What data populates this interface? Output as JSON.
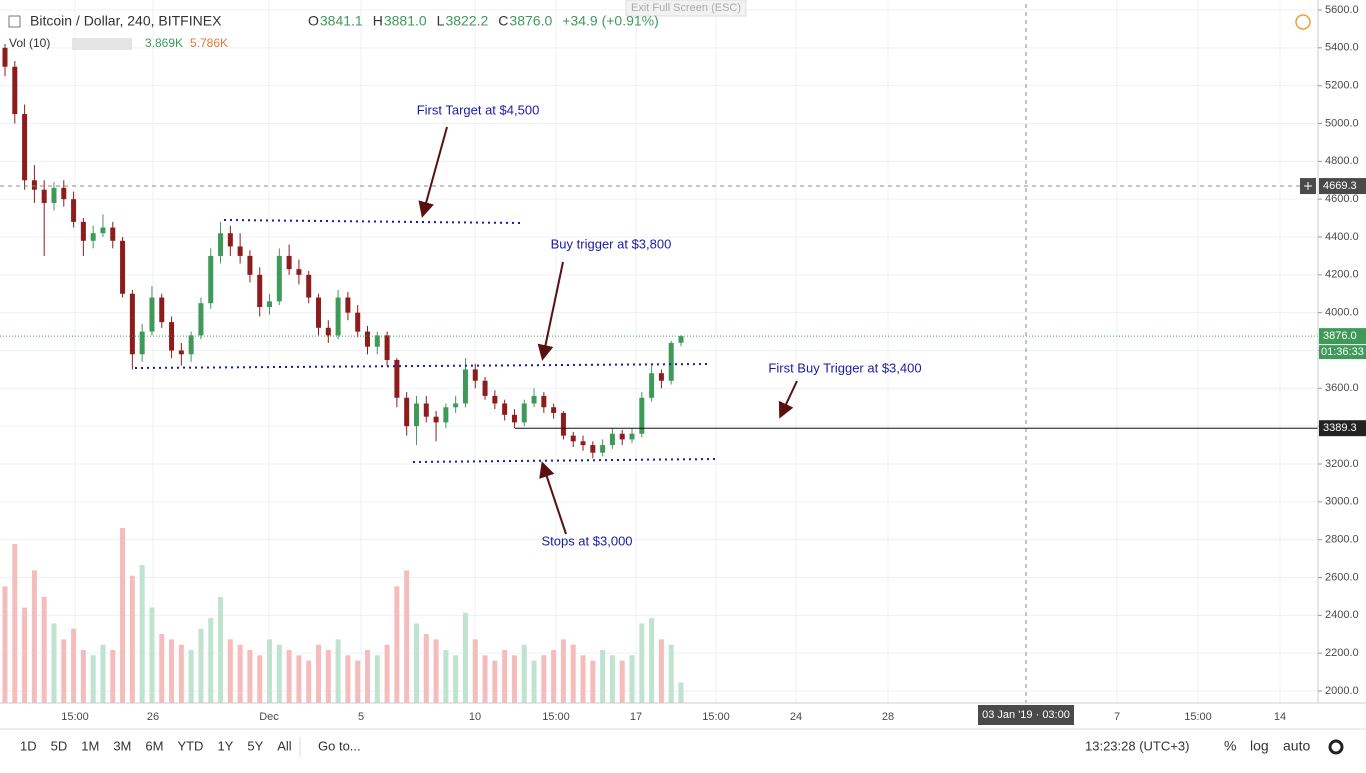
{
  "chart_data": {
    "type": "candlestick",
    "title": "Bitcoin / Dollar, 240, BITFINEX",
    "legend": [
      "O",
      "3841.1",
      "H",
      "3881.0",
      "L",
      "3822.2",
      "C",
      "3876.0",
      "+34.9 (+0.91%)"
    ],
    "volume_title": "Vol (10)",
    "volume_label": "3.869K",
    "volume_ma_label": "5.786K",
    "exit_label": "Exit Full Screen (ESC)",
    "up_color": "#3f9a5a",
    "down_color": "#8e1c1c",
    "up_volume_color": "#bfe3cf",
    "down_volume_color": "#f5bcbc",
    "ylim": [
      2000,
      5600
    ],
    "yticks": [
      {
        "value": 2000,
        "label": "2000.0"
      },
      {
        "value": 2200,
        "label": "2200.0"
      },
      {
        "value": 2400,
        "label": "2400.0"
      },
      {
        "value": 2600,
        "label": "2600.0"
      },
      {
        "value": 2800,
        "label": "2800.0"
      },
      {
        "value": 3000,
        "label": "3000.0"
      },
      {
        "value": 3200,
        "label": "3200.0"
      },
      {
        "value": 3400,
        "label": "3400.0"
      },
      {
        "value": 3600,
        "label": "3600.0"
      },
      {
        "value": 3800,
        "label": "3800.0"
      },
      {
        "value": 4000,
        "label": "4000.0"
      },
      {
        "value": 4200,
        "label": "4200.0"
      },
      {
        "value": 4400,
        "label": "4400.0"
      },
      {
        "value": 4600,
        "label": "4600.0"
      },
      {
        "value": 4800,
        "label": "4800.0"
      },
      {
        "value": 5000,
        "label": "5000.0"
      },
      {
        "value": 5200,
        "label": "5200.0"
      },
      {
        "value": 5400,
        "label": "5400.0"
      },
      {
        "value": 5600,
        "label": "5600.0"
      }
    ],
    "xticks": [
      "15:00",
      "26",
      "Dec",
      "5",
      "10",
      "15:00",
      "17",
      "15:00",
      "24",
      "28",
      "7",
      "15:00",
      "14"
    ],
    "crosshair_time": "03 Jan '19 · 03:00",
    "last_price": {
      "value": 3876.0,
      "label": "3876.0"
    },
    "countdown": "01:36:33",
    "crosshair_price": {
      "value": 4669.3,
      "label": "4669.3"
    },
    "hline": {
      "value": 3389.3,
      "label": "3389.3"
    },
    "ohlc": [
      [
        5400,
        5420,
        5250,
        5300
      ],
      [
        5300,
        5330,
        5000,
        5050
      ],
      [
        5050,
        5100,
        4650,
        4700
      ],
      [
        4700,
        4780,
        4580,
        4650
      ],
      [
        4650,
        4700,
        4300,
        4580
      ],
      [
        4580,
        4690,
        4540,
        4660
      ],
      [
        4660,
        4700,
        4560,
        4600
      ],
      [
        4600,
        4640,
        4450,
        4480
      ],
      [
        4480,
        4500,
        4300,
        4380
      ],
      [
        4380,
        4460,
        4340,
        4420
      ],
      [
        4420,
        4520,
        4400,
        4450
      ],
      [
        4450,
        4480,
        4340,
        4380
      ],
      [
        4380,
        4400,
        4080,
        4100
      ],
      [
        4100,
        4120,
        3700,
        3780
      ],
      [
        3780,
        3940,
        3740,
        3900
      ],
      [
        3900,
        4140,
        3880,
        4080
      ],
      [
        4080,
        4100,
        3920,
        3950
      ],
      [
        3950,
        3980,
        3760,
        3800
      ],
      [
        3800,
        3840,
        3720,
        3780
      ],
      [
        3780,
        3900,
        3740,
        3880
      ],
      [
        3880,
        4080,
        3860,
        4050
      ],
      [
        4050,
        4340,
        4020,
        4300
      ],
      [
        4300,
        4480,
        4260,
        4420
      ],
      [
        4420,
        4460,
        4300,
        4350
      ],
      [
        4350,
        4420,
        4260,
        4300
      ],
      [
        4300,
        4330,
        4160,
        4200
      ],
      [
        4200,
        4240,
        3980,
        4030
      ],
      [
        4030,
        4100,
        3990,
        4060
      ],
      [
        4060,
        4340,
        4040,
        4300
      ],
      [
        4300,
        4360,
        4200,
        4230
      ],
      [
        4230,
        4280,
        4150,
        4200
      ],
      [
        4200,
        4220,
        4050,
        4080
      ],
      [
        4080,
        4100,
        3880,
        3920
      ],
      [
        3920,
        3960,
        3840,
        3880
      ],
      [
        3880,
        4120,
        3860,
        4080
      ],
      [
        4080,
        4110,
        3960,
        4000
      ],
      [
        4000,
        4040,
        3870,
        3900
      ],
      [
        3900,
        3930,
        3780,
        3820
      ],
      [
        3820,
        3900,
        3780,
        3880
      ],
      [
        3880,
        3900,
        3720,
        3750
      ],
      [
        3750,
        3760,
        3500,
        3550
      ],
      [
        3550,
        3580,
        3350,
        3400
      ],
      [
        3400,
        3560,
        3300,
        3520
      ],
      [
        3520,
        3560,
        3420,
        3450
      ],
      [
        3450,
        3480,
        3320,
        3420
      ],
      [
        3420,
        3520,
        3390,
        3500
      ],
      [
        3500,
        3560,
        3470,
        3520
      ],
      [
        3520,
        3760,
        3500,
        3700
      ],
      [
        3700,
        3730,
        3600,
        3640
      ],
      [
        3640,
        3660,
        3540,
        3560
      ],
      [
        3560,
        3590,
        3490,
        3520
      ],
      [
        3520,
        3540,
        3430,
        3460
      ],
      [
        3460,
        3490,
        3390,
        3420
      ],
      [
        3420,
        3540,
        3400,
        3520
      ],
      [
        3520,
        3600,
        3500,
        3560
      ],
      [
        3560,
        3580,
        3470,
        3500
      ],
      [
        3500,
        3520,
        3440,
        3470
      ],
      [
        3470,
        3480,
        3330,
        3350
      ],
      [
        3350,
        3370,
        3290,
        3320
      ],
      [
        3320,
        3350,
        3270,
        3300
      ],
      [
        3300,
        3320,
        3230,
        3260
      ],
      [
        3260,
        3330,
        3240,
        3300
      ],
      [
        3300,
        3390,
        3280,
        3360
      ],
      [
        3360,
        3380,
        3300,
        3330
      ],
      [
        3330,
        3390,
        3310,
        3360
      ],
      [
        3360,
        3580,
        3340,
        3550
      ],
      [
        3550,
        3720,
        3530,
        3680
      ],
      [
        3680,
        3700,
        3600,
        3640
      ],
      [
        3640,
        3850,
        3620,
        3840
      ],
      [
        3841.1,
        3881.0,
        3822.2,
        3876.0
      ]
    ],
    "volume": [
      22,
      30,
      18,
      25,
      20,
      15,
      12,
      14,
      10,
      9,
      11,
      10,
      33,
      24,
      26,
      18,
      13,
      12,
      11,
      10,
      14,
      16,
      20,
      12,
      11,
      10,
      9,
      12,
      11,
      10,
      9,
      8,
      11,
      10,
      12,
      9,
      8,
      10,
      9,
      11,
      22,
      25,
      15,
      13,
      12,
      10,
      9,
      17,
      12,
      9,
      8,
      10,
      9,
      11,
      8,
      9,
      10,
      12,
      11,
      9,
      8,
      10,
      9,
      8,
      9,
      15,
      16,
      12,
      11,
      3.869
    ],
    "annotations": [
      "First Target at $4,500",
      "Buy trigger at $3,800",
      "First Buy Trigger at $3,400",
      "Stops at $3,000"
    ],
    "toolbar": [
      "1D",
      "5D",
      "1M",
      "3M",
      "6M",
      "YTD",
      "1Y",
      "5Y",
      "All"
    ],
    "goto": "Go to...",
    "clock": "13:23:28 (UTC+3)",
    "options": [
      "%",
      "log",
      "auto"
    ]
  }
}
